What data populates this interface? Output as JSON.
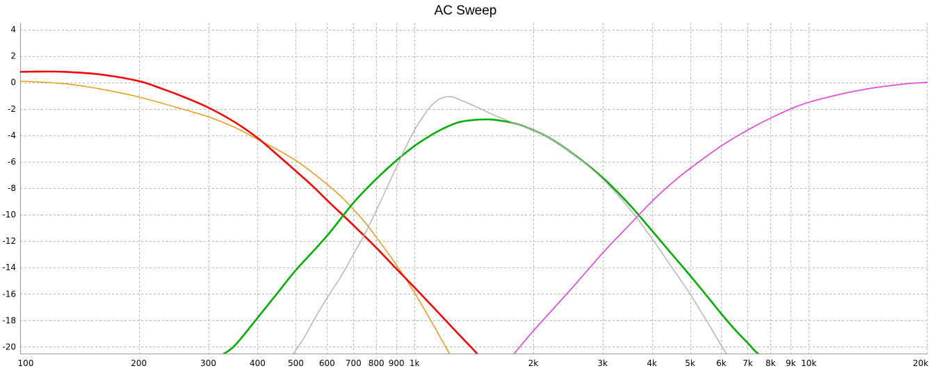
{
  "chart_data": {
    "type": "line",
    "title": "AC Sweep",
    "xscale": "log",
    "xlim": [
      100,
      20000
    ],
    "ylim": [
      -20.5,
      4.5
    ],
    "grid": true,
    "x_ticks": [
      {
        "value": 100,
        "label": "100"
      },
      {
        "value": 200,
        "label": "200"
      },
      {
        "value": 300,
        "label": "300"
      },
      {
        "value": 400,
        "label": "400"
      },
      {
        "value": 500,
        "label": "500"
      },
      {
        "value": 600,
        "label": "600"
      },
      {
        "value": 700,
        "label": "700"
      },
      {
        "value": 800,
        "label": "800"
      },
      {
        "value": 900,
        "label": "900"
      },
      {
        "value": 1000,
        "label": "1k"
      },
      {
        "value": 2000,
        "label": "2k"
      },
      {
        "value": 3000,
        "label": "3k"
      },
      {
        "value": 4000,
        "label": "4k"
      },
      {
        "value": 5000,
        "label": "5k"
      },
      {
        "value": 6000,
        "label": "6k"
      },
      {
        "value": 7000,
        "label": "7k"
      },
      {
        "value": 8000,
        "label": "8k"
      },
      {
        "value": 9000,
        "label": "9k"
      },
      {
        "value": 10000,
        "label": "10k"
      },
      {
        "value": 20000,
        "label": "20k"
      }
    ],
    "y_ticks": [
      4,
      2,
      0,
      -2,
      -4,
      -6,
      -8,
      -10,
      -12,
      -14,
      -16,
      -18,
      -20
    ],
    "series": [
      {
        "color": "#e69500",
        "width": 1.4,
        "points": [
          [
            100,
            0.1
          ],
          [
            130,
            -0.1
          ],
          [
            160,
            -0.5
          ],
          [
            200,
            -1.1
          ],
          [
            250,
            -1.9
          ],
          [
            300,
            -2.6
          ],
          [
            350,
            -3.4
          ],
          [
            400,
            -4.3
          ],
          [
            450,
            -5.1
          ],
          [
            500,
            -5.9
          ],
          [
            550,
            -6.8
          ],
          [
            600,
            -7.7
          ],
          [
            650,
            -8.6
          ],
          [
            700,
            -9.6
          ],
          [
            750,
            -10.6
          ],
          [
            800,
            -11.7
          ],
          [
            900,
            -13.8
          ],
          [
            1000,
            -15.9
          ],
          [
            1100,
            -18.0
          ],
          [
            1200,
            -20.0
          ],
          [
            1250,
            -20.9
          ]
        ]
      },
      {
        "color": "#ff0000",
        "width": 2.6,
        "points": [
          [
            100,
            0.8
          ],
          [
            110,
            0.82
          ],
          [
            130,
            0.8
          ],
          [
            160,
            0.6
          ],
          [
            200,
            0.1
          ],
          [
            230,
            -0.5
          ],
          [
            260,
            -1.1
          ],
          [
            300,
            -1.9
          ],
          [
            350,
            -3.0
          ],
          [
            400,
            -4.2
          ],
          [
            450,
            -5.5
          ],
          [
            500,
            -6.7
          ],
          [
            550,
            -7.8
          ],
          [
            600,
            -8.9
          ],
          [
            700,
            -10.8
          ],
          [
            800,
            -12.5
          ],
          [
            900,
            -14.1
          ],
          [
            1000,
            -15.5
          ],
          [
            1100,
            -16.8
          ],
          [
            1200,
            -18.0
          ],
          [
            1300,
            -19.1
          ],
          [
            1400,
            -20.1
          ],
          [
            1450,
            -20.6
          ]
        ]
      },
      {
        "color": "#00b000",
        "width": 2.6,
        "points": [
          [
            325,
            -20.6
          ],
          [
            350,
            -19.9
          ],
          [
            400,
            -17.8
          ],
          [
            450,
            -15.9
          ],
          [
            500,
            -14.2
          ],
          [
            600,
            -11.6
          ],
          [
            700,
            -9.1
          ],
          [
            800,
            -7.3
          ],
          [
            900,
            -5.9
          ],
          [
            1000,
            -4.8
          ],
          [
            1100,
            -4.0
          ],
          [
            1200,
            -3.4
          ],
          [
            1300,
            -3.0
          ],
          [
            1400,
            -2.85
          ],
          [
            1500,
            -2.8
          ],
          [
            1600,
            -2.83
          ],
          [
            1800,
            -3.1
          ],
          [
            2000,
            -3.6
          ],
          [
            2200,
            -4.2
          ],
          [
            2500,
            -5.3
          ],
          [
            3000,
            -7.2
          ],
          [
            3500,
            -9.2
          ],
          [
            4000,
            -11.2
          ],
          [
            4500,
            -13.0
          ],
          [
            5000,
            -14.6
          ],
          [
            5500,
            -16.1
          ],
          [
            6000,
            -17.5
          ],
          [
            6500,
            -18.7
          ],
          [
            7000,
            -19.7
          ],
          [
            7300,
            -20.3
          ],
          [
            7500,
            -20.6
          ]
        ]
      },
      {
        "color": "#b0b0b0",
        "width": 1.4,
        "points": [
          [
            490,
            -20.6
          ],
          [
            520,
            -19.5
          ],
          [
            560,
            -17.8
          ],
          [
            600,
            -16.3
          ],
          [
            650,
            -14.7
          ],
          [
            700,
            -13.0
          ],
          [
            750,
            -11.4
          ],
          [
            800,
            -9.7
          ],
          [
            850,
            -8.0
          ],
          [
            900,
            -6.4
          ],
          [
            950,
            -4.9
          ],
          [
            1000,
            -3.6
          ],
          [
            1050,
            -2.6
          ],
          [
            1100,
            -1.8
          ],
          [
            1150,
            -1.3
          ],
          [
            1200,
            -1.1
          ],
          [
            1250,
            -1.1
          ],
          [
            1300,
            -1.3
          ],
          [
            1400,
            -1.7
          ],
          [
            1600,
            -2.5
          ],
          [
            1800,
            -3.1
          ],
          [
            2000,
            -3.6
          ],
          [
            2200,
            -4.2
          ],
          [
            2500,
            -5.3
          ],
          [
            3000,
            -7.3
          ],
          [
            3500,
            -9.5
          ],
          [
            4000,
            -11.8
          ],
          [
            4500,
            -14.0
          ],
          [
            5000,
            -16.0
          ],
          [
            5500,
            -18.0
          ],
          [
            6000,
            -19.9
          ],
          [
            6200,
            -20.6
          ]
        ]
      },
      {
        "color": "#e040e0",
        "width": 1.6,
        "points": [
          [
            1780,
            -20.6
          ],
          [
            2000,
            -18.8
          ],
          [
            2500,
            -15.6
          ],
          [
            3000,
            -12.9
          ],
          [
            3500,
            -10.8
          ],
          [
            4000,
            -9.0
          ],
          [
            4500,
            -7.6
          ],
          [
            5000,
            -6.5
          ],
          [
            6000,
            -4.8
          ],
          [
            7000,
            -3.6
          ],
          [
            8000,
            -2.7
          ],
          [
            9000,
            -2.0
          ],
          [
            10000,
            -1.5
          ],
          [
            12000,
            -0.9
          ],
          [
            14000,
            -0.5
          ],
          [
            16000,
            -0.25
          ],
          [
            18000,
            -0.08
          ],
          [
            20000,
            0.0
          ]
        ]
      }
    ]
  }
}
